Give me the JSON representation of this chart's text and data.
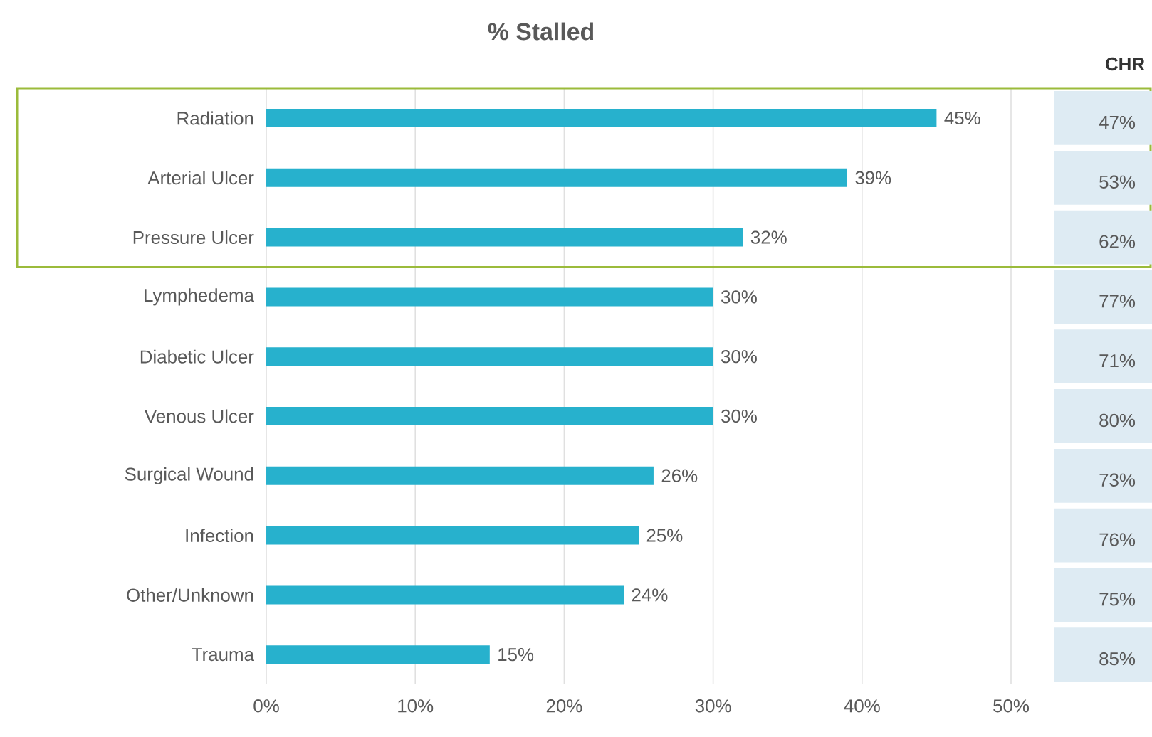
{
  "chart_data": {
    "type": "bar",
    "orientation": "horizontal",
    "title": "% Stalled",
    "categories": [
      "Radiation",
      "Arterial Ulcer",
      "Pressure Ulcer",
      "Lymphedema",
      "Diabetic Ulcer",
      "Venous Ulcer",
      "Surgical Wound",
      "Infection",
      "Other/Unknown",
      "Trauma"
    ],
    "values": [
      45,
      39,
      32,
      30,
      30,
      30,
      26,
      25,
      24,
      15
    ],
    "value_labels": [
      "45%",
      "39%",
      "32%",
      "30%",
      "30%",
      "30%",
      "26%",
      "25%",
      "24%",
      "15%"
    ],
    "color": "#27b1cd",
    "xlim": [
      0,
      50
    ],
    "xticks": [
      {
        "value": 0,
        "label": "0%"
      },
      {
        "value": 10,
        "label": "10%"
      },
      {
        "value": 20,
        "label": "20%"
      },
      {
        "value": 30,
        "label": "30%"
      },
      {
        "value": 40,
        "label": "40%"
      },
      {
        "value": 50,
        "label": "50%"
      }
    ],
    "grid": "x",
    "annotations": [
      "CHR",
      "47%",
      "53%",
      "62%",
      "77%",
      "71%",
      "80%",
      "73%",
      "76%",
      "75%",
      "85%"
    ]
  }
}
